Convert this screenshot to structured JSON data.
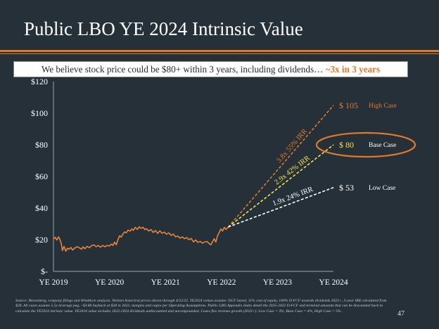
{
  "page": {
    "title": "Public LBO YE 2024 Intrinsic Value",
    "banner_text": "We believe stock price could be $80+ within 3 years, including dividends… ",
    "banner_highlight": "~3x in 3 years",
    "source_note": "Source: Bloomberg, company filings and WindAcre analysis. Nielsen historical prices shown through 4/22/22.  YE2024 values assume: DCF based, 11% cost of equity, 100% D-FCF towards dividends 2023+, 3-year IRR calculated from $28. All cases assume 5.5x leverage peg, ~$3.8b buyback at $28 in 2022, margins and capex per Operating Assumptions. Public LBO Appendix slides detail the 2025-2032 D-FCF and terminal amounts that can be discounted back to calculate the YE2024 intrinsic value.  YE2024 value includes 2022-2024 dividends undiscounted and uncompounded.  Cases flex revenue growth (2023+): Low Case = 3%, Base Case = 4%, High Case = 5%.",
    "page_number": "47"
  },
  "colors": {
    "accent": "#e07a2a",
    "background": "#263038",
    "history_line": "#e8843a",
    "high_line": "#e07a2a",
    "base_line": "#f5e050",
    "low_line": "#ffffff"
  },
  "chart_data": {
    "type": "line",
    "title": "",
    "xlabel": "",
    "ylabel": "",
    "x_axis_labels": [
      "YE 2019",
      "YE 2020",
      "YE 2021",
      "YE 2022",
      "YE 2023",
      "YE 2024"
    ],
    "x_range": [
      2019,
      2024
    ],
    "y_axis_labels": [
      "$-",
      "$20",
      "$40",
      "$60",
      "$80",
      "$100",
      "$120"
    ],
    "y_ticks": [
      0,
      20,
      40,
      60,
      80,
      100,
      120
    ],
    "ylim": [
      0,
      120
    ],
    "series": [
      {
        "name": "Nielsen historical price",
        "style": "solid",
        "color": "#e8843a",
        "points": [
          [
            2019.0,
            20.5
          ],
          [
            2019.03,
            21.5
          ],
          [
            2019.06,
            19.8
          ],
          [
            2019.09,
            21.8
          ],
          [
            2019.11,
            20.6
          ],
          [
            2019.14,
            17.5
          ],
          [
            2019.16,
            13.2
          ],
          [
            2019.19,
            15.8
          ],
          [
            2019.22,
            12.7
          ],
          [
            2019.25,
            14.6
          ],
          [
            2019.28,
            14.0
          ],
          [
            2019.31,
            15.1
          ],
          [
            2019.34,
            13.5
          ],
          [
            2019.38,
            14.7
          ],
          [
            2019.42,
            15.6
          ],
          [
            2019.46,
            15.0
          ],
          [
            2019.5,
            14.0
          ],
          [
            2019.53,
            15.5
          ],
          [
            2019.56,
            14.3
          ],
          [
            2019.6,
            15.8
          ],
          [
            2019.64,
            15.0
          ],
          [
            2019.68,
            16.2
          ],
          [
            2019.72,
            16.8
          ],
          [
            2019.76,
            15.6
          ],
          [
            2019.8,
            16.3
          ],
          [
            2019.84,
            15.3
          ],
          [
            2019.88,
            16.4
          ],
          [
            2019.92,
            15.5
          ],
          [
            2019.96,
            16.4
          ],
          [
            2020.0,
            16.0
          ],
          [
            2020.03,
            17.2
          ],
          [
            2020.06,
            16.4
          ],
          [
            2020.09,
            18.5
          ],
          [
            2020.12,
            16.8
          ],
          [
            2020.15,
            19.8
          ],
          [
            2020.18,
            22.5
          ],
          [
            2020.21,
            21.6
          ],
          [
            2020.24,
            23.6
          ],
          [
            2020.27,
            24.9
          ],
          [
            2020.3,
            24.4
          ],
          [
            2020.33,
            26.0
          ],
          [
            2020.37,
            25.5
          ],
          [
            2020.4,
            26.8
          ],
          [
            2020.43,
            26.0
          ],
          [
            2020.46,
            27.8
          ],
          [
            2020.5,
            26.5
          ],
          [
            2020.53,
            28.2
          ],
          [
            2020.56,
            27.2
          ],
          [
            2020.6,
            27.9
          ],
          [
            2020.63,
            26.4
          ],
          [
            2020.66,
            27.0
          ],
          [
            2020.7,
            25.5
          ],
          [
            2020.74,
            26.5
          ],
          [
            2020.78,
            24.6
          ],
          [
            2020.82,
            25.8
          ],
          [
            2020.86,
            24.0
          ],
          [
            2020.9,
            25.6
          ],
          [
            2020.94,
            24.1
          ],
          [
            2020.98,
            24.8
          ],
          [
            2021.02,
            23.5
          ],
          [
            2021.06,
            24.3
          ],
          [
            2021.1,
            22.7
          ],
          [
            2021.14,
            23.6
          ],
          [
            2021.18,
            21.8
          ],
          [
            2021.22,
            22.3
          ],
          [
            2021.26,
            21.0
          ],
          [
            2021.3,
            21.8
          ],
          [
            2021.34,
            20.6
          ],
          [
            2021.38,
            21.4
          ],
          [
            2021.42,
            20.0
          ],
          [
            2021.46,
            20.8
          ],
          [
            2021.5,
            18.6
          ],
          [
            2021.54,
            19.8
          ],
          [
            2021.58,
            18.3
          ],
          [
            2021.62,
            19.0
          ],
          [
            2021.66,
            17.8
          ],
          [
            2021.7,
            18.6
          ],
          [
            2021.74,
            18.9
          ],
          [
            2021.78,
            17.6
          ],
          [
            2021.81,
            16.8
          ],
          [
            2021.84,
            18.8
          ],
          [
            2021.87,
            20.6
          ],
          [
            2021.9,
            18.5
          ],
          [
            2021.93,
            22.5
          ],
          [
            2021.96,
            24.6
          ],
          [
            2021.99,
            26.8
          ],
          [
            2022.02,
            25.5
          ],
          [
            2022.05,
            27.8
          ],
          [
            2022.08,
            26.5
          ],
          [
            2022.12,
            28.0
          ]
        ]
      },
      {
        "name": "High Case",
        "style": "dashed",
        "color": "#e07a2a",
        "points": [
          [
            2022.12,
            28.0
          ],
          [
            2024.0,
            105
          ]
        ],
        "value_label": "$ 105",
        "case_label": "High Case",
        "annotation": "3.8x  55% IRR"
      },
      {
        "name": "Base Case",
        "style": "dashed",
        "color": "#f5e050",
        "points": [
          [
            2022.12,
            28.0
          ],
          [
            2024.0,
            80
          ]
        ],
        "value_label": "$ 80",
        "case_label": "Base Case",
        "annotation": "2.9x  42% IRR"
      },
      {
        "name": "Low Case",
        "style": "dashed",
        "color": "#ffffff",
        "points": [
          [
            2022.12,
            28.0
          ],
          [
            2024.0,
            53
          ]
        ],
        "value_label": "$ 53",
        "case_label": "Low Case",
        "annotation": "1.9x  24% IRR"
      }
    ]
  }
}
